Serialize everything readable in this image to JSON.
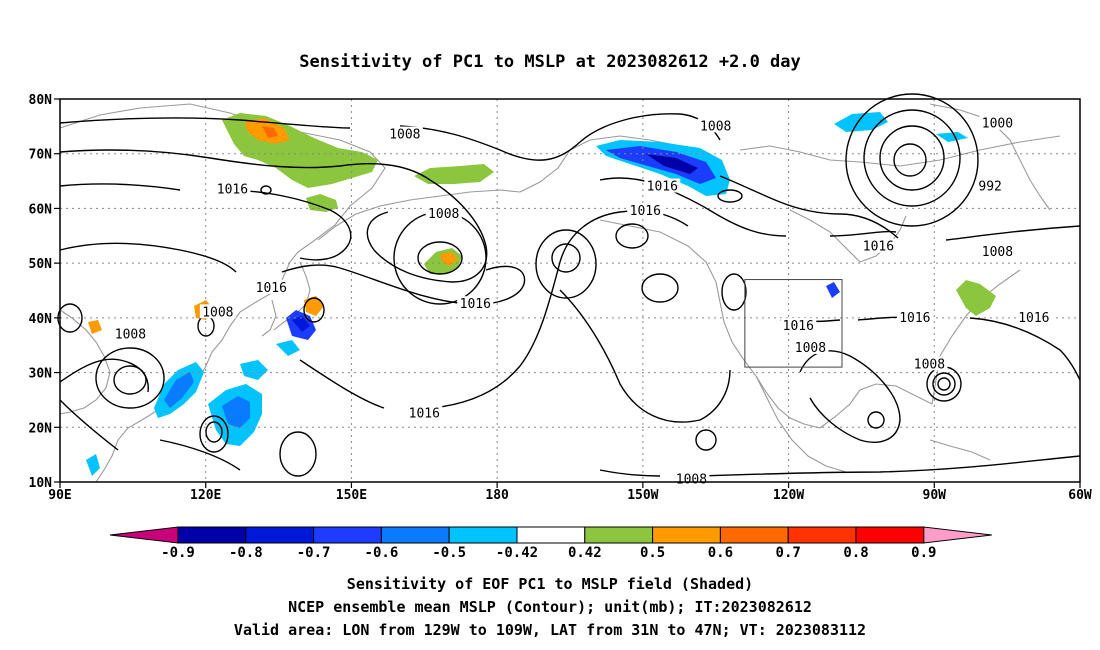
{
  "title": "Sensitivity of PC1 to MSLP at 2023082612 +2.0 day",
  "map": {
    "lon_range": [
      90,
      300
    ],
    "lat_range": [
      10,
      80
    ],
    "lat_ticks": [
      {
        "value": 80,
        "label": "80N"
      },
      {
        "value": 70,
        "label": "70N"
      },
      {
        "value": 60,
        "label": "60N"
      },
      {
        "value": 50,
        "label": "50N"
      },
      {
        "value": 40,
        "label": "40N"
      },
      {
        "value": 30,
        "label": "30N"
      },
      {
        "value": 20,
        "label": "20N"
      },
      {
        "value": 10,
        "label": "10N"
      }
    ],
    "lon_ticks": [
      {
        "value": 90,
        "label": "90E"
      },
      {
        "value": 120,
        "label": "120E"
      },
      {
        "value": 150,
        "label": "150E"
      },
      {
        "value": 180,
        "label": "180"
      },
      {
        "value": 210,
        "label": "150W"
      },
      {
        "value": 240,
        "label": "120W"
      },
      {
        "value": 270,
        "label": "90W"
      },
      {
        "value": 300,
        "label": "60W"
      }
    ],
    "valid_box": {
      "lon": [
        231,
        251
      ],
      "lat": [
        31,
        47
      ]
    },
    "grid": "dotted",
    "contour_labels": [
      {
        "text": "1008",
        "lon": 161,
        "lat": 73.5
      },
      {
        "text": "1008",
        "lon": 225,
        "lat": 75
      },
      {
        "text": "1000",
        "lon": 283,
        "lat": 75.5
      },
      {
        "text": "992",
        "lon": 281.5,
        "lat": 64
      },
      {
        "text": "1016",
        "lon": 125.5,
        "lat": 63.5
      },
      {
        "text": "1016",
        "lon": 214,
        "lat": 64
      },
      {
        "text": "1016",
        "lon": 210.5,
        "lat": 59.5
      },
      {
        "text": "1016",
        "lon": 258.5,
        "lat": 53
      },
      {
        "text": "1008",
        "lon": 283,
        "lat": 52
      },
      {
        "text": "1008",
        "lon": 169,
        "lat": 59
      },
      {
        "text": "1016",
        "lon": 133.5,
        "lat": 45.5
      },
      {
        "text": "1016",
        "lon": 175.5,
        "lat": 42.5
      },
      {
        "text": "1008",
        "lon": 122.5,
        "lat": 41
      },
      {
        "text": "1008",
        "lon": 104.5,
        "lat": 37
      },
      {
        "text": "1016",
        "lon": 242,
        "lat": 38.5
      },
      {
        "text": "1008",
        "lon": 244.5,
        "lat": 34.5
      },
      {
        "text": "1016",
        "lon": 266,
        "lat": 40
      },
      {
        "text": "1016",
        "lon": 290.5,
        "lat": 40
      },
      {
        "text": "1008",
        "lon": 269,
        "lat": 31.5
      },
      {
        "text": "1016",
        "lon": 165,
        "lat": 22.5
      },
      {
        "text": "1008",
        "lon": 220,
        "lat": 10.5
      }
    ]
  },
  "colorbar": {
    "colors": [
      "#c8007a",
      "#0000a8",
      "#0018d8",
      "#1c3cff",
      "#0a7bff",
      "#00c3ff",
      "#ffffff",
      "#8cc63e",
      "#ff9a00",
      "#ff6a00",
      "#ff3200",
      "#ff0000",
      "#ff9cc8"
    ],
    "labels": [
      "-0.9",
      "-0.8",
      "-0.7",
      "-0.6",
      "-0.5",
      "-0.42",
      "0.42",
      "0.5",
      "0.6",
      "0.7",
      "0.8",
      "0.9"
    ]
  },
  "footer": {
    "line1": "Sensitivity of EOF PC1 to MSLP field (Shaded)",
    "line2": "NCEP ensemble mean MSLP (Contour); unit(mb); IT:2023082612",
    "line3": "Valid area: LON from 129W to 109W, LAT from 31N to 47N; VT: 2023083112"
  }
}
